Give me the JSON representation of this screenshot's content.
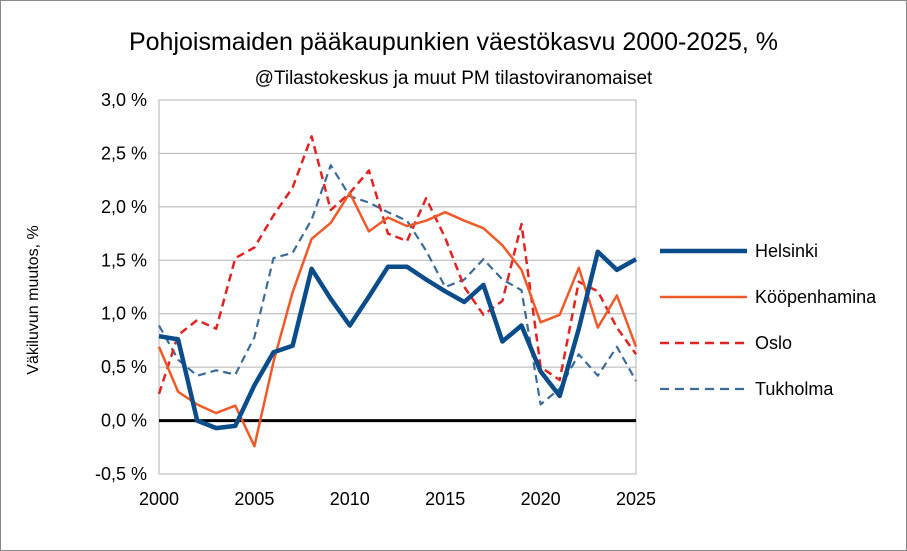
{
  "chart_data": {
    "type": "line",
    "title": "Pohjoismaiden pääkaupunkien väestökasvu 2000-2025, %",
    "subtitle": "@Tilastokeskus ja muut PM tilastoviranomaiset",
    "ylabel": "Väkiluvun muutos, %",
    "xlim": [
      2000,
      2025
    ],
    "ylim": [
      -0.5,
      3.0
    ],
    "x_ticks": [
      "2000",
      "2005",
      "2010",
      "2015",
      "2020",
      "2025"
    ],
    "y_ticks": [
      "3,0 %",
      "2,5 %",
      "2,0 %",
      "1,5 %",
      "1,0 %",
      "0,5 %",
      "0,0 %",
      "-0,5 %"
    ],
    "grid": true,
    "legend": "right",
    "x": [
      2000,
      2001,
      2002,
      2003,
      2004,
      2005,
      2006,
      2007,
      2008,
      2009,
      2010,
      2011,
      2012,
      2013,
      2014,
      2015,
      2016,
      2017,
      2018,
      2019,
      2020,
      2021,
      2022,
      2023,
      2024,
      2025
    ],
    "series": [
      {
        "name": "Helsinki",
        "color": "#0b4c8a",
        "style": "solid-thick",
        "values": [
          0.79,
          0.76,
          0.0,
          -0.07,
          -0.05,
          0.33,
          0.64,
          0.7,
          1.42,
          1.14,
          0.89,
          1.16,
          1.44,
          1.44,
          1.32,
          1.21,
          1.11,
          1.27,
          0.74,
          0.89,
          0.46,
          0.23,
          0.86,
          1.58,
          1.41,
          1.51
        ]
      },
      {
        "name": "Kööpenhamina",
        "color": "#f05a28",
        "style": "solid",
        "values": [
          0.69,
          0.27,
          0.15,
          0.07,
          0.14,
          -0.24,
          0.55,
          1.2,
          1.7,
          1.85,
          2.13,
          1.77,
          1.9,
          1.82,
          1.87,
          1.95,
          1.87,
          1.8,
          1.64,
          1.41,
          0.92,
          0.99,
          1.43,
          0.87,
          1.17,
          0.69
        ]
      },
      {
        "name": "Oslo",
        "color": "#e32222",
        "style": "dashed",
        "values": [
          0.25,
          0.8,
          0.94,
          0.86,
          1.52,
          1.62,
          1.92,
          2.18,
          2.66,
          1.97,
          2.13,
          2.34,
          1.75,
          1.68,
          2.08,
          1.71,
          1.25,
          0.99,
          1.12,
          1.84,
          0.5,
          0.38,
          1.3,
          1.21,
          0.87,
          0.62
        ]
      },
      {
        "name": "Tukholma",
        "color": "#3b6b9b",
        "style": "dashed",
        "values": [
          0.89,
          0.57,
          0.42,
          0.47,
          0.43,
          0.78,
          1.52,
          1.57,
          1.88,
          2.39,
          2.1,
          2.04,
          1.95,
          1.87,
          1.59,
          1.25,
          1.32,
          1.51,
          1.32,
          1.22,
          0.15,
          0.3,
          0.62,
          0.42,
          0.69,
          0.37
        ]
      }
    ]
  }
}
